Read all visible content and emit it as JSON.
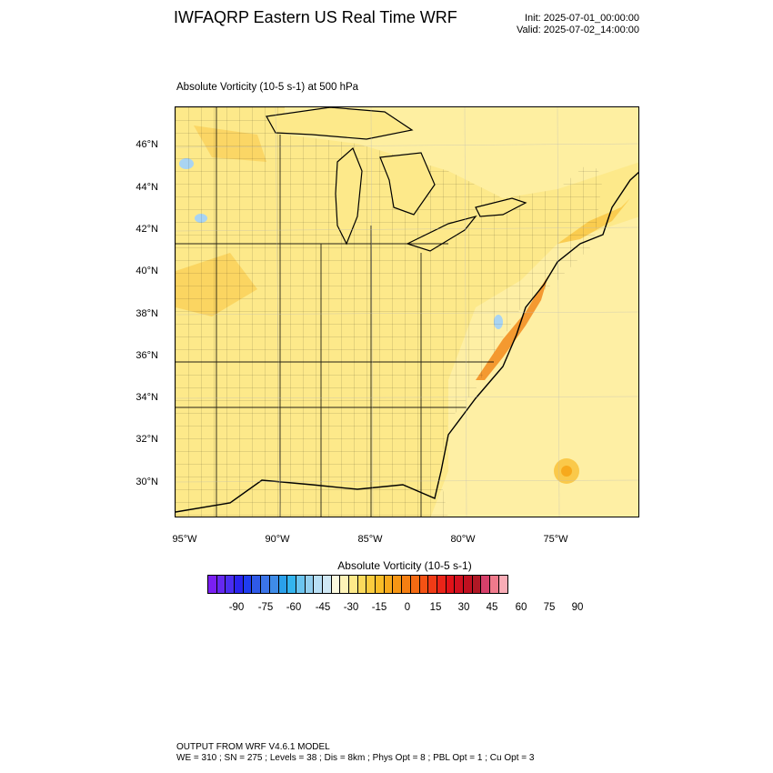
{
  "header": {
    "title": "IWFAQRP Eastern US Real Time WRF",
    "init": "Init: 2025-07-01_00:00:00",
    "valid": "Valid: 2025-07-02_14:00:00"
  },
  "field": {
    "title": "Absolute Vorticity   (10-5 s-1)     at   500 hPa"
  },
  "map": {
    "lat_ticks": [
      "46°N",
      "44°N",
      "42°N",
      "40°N",
      "38°N",
      "36°N",
      "34°N",
      "32°N",
      "30°N"
    ],
    "lon_ticks": [
      "95°W",
      "90°W",
      "85°W",
      "80°W",
      "75°W"
    ],
    "colors": {
      "background": "#fde98a",
      "land_light": "#fef3a8",
      "positive_mid": "#f9c440",
      "positive_high": "#f28a1c",
      "negative_light": "#a9d4f2",
      "border": "#000000"
    }
  },
  "colorbar": {
    "title": "Absolute Vorticity  (10-5 s-1)",
    "labels": [
      "-90",
      "-75",
      "-60",
      "-45",
      "-30",
      "-15",
      "0",
      "15",
      "30",
      "45",
      "60",
      "75",
      "90"
    ],
    "colors": [
      "#7a1ff2",
      "#6528f0",
      "#4b2ef0",
      "#2a24ee",
      "#1f3df0",
      "#2f5ae8",
      "#3b74e8",
      "#3f8ce8",
      "#2aa0ea",
      "#34b4ee",
      "#6bc4ef",
      "#94cfee",
      "#b8dff5",
      "#cfe8f5",
      "#fbf9df",
      "#fef3b8",
      "#fde98a",
      "#fcda5c",
      "#fbcc3e",
      "#f9bd28",
      "#f7a91c",
      "#f69614",
      "#f57f12",
      "#f46a12",
      "#f45214",
      "#f03b16",
      "#ea2418",
      "#e11218",
      "#d2101f",
      "#c01020",
      "#b01825",
      "#d6406a",
      "#f07a8c",
      "#f9acb6"
    ]
  },
  "footer": {
    "line1": "OUTPUT FROM WRF V4.6.1 MODEL",
    "line2": "WE = 310 ; SN = 275 ; Levels = 38 ; Dis = 8km ; Phys Opt = 8 ; PBL Opt = 1 ; Cu Opt = 3"
  }
}
